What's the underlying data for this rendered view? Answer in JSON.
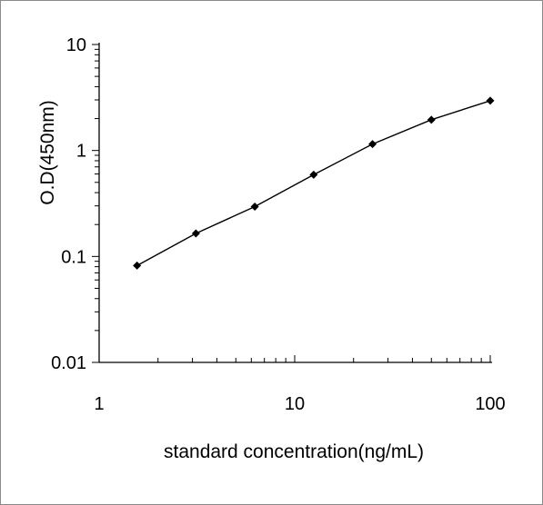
{
  "chart_data": {
    "type": "line",
    "xlabel": "standard concentration(ng/mL)",
    "ylabel": "O.D(450nm)",
    "xscale": "log",
    "yscale": "log",
    "xlim": [
      1,
      100
    ],
    "ylim": [
      0.01,
      10
    ],
    "x_tick_labels": [
      "1",
      "10",
      "100"
    ],
    "y_tick_labels": [
      "10",
      "1",
      "0.1",
      "0.01"
    ],
    "grid": false,
    "legend": "none",
    "marker": "diamond",
    "line_color": "#000000",
    "series": [
      {
        "x": [
          1.5625,
          3.125,
          6.25,
          12.5,
          25,
          50,
          100
        ],
        "y": [
          0.082,
          0.165,
          0.295,
          0.59,
          1.15,
          1.95,
          2.95
        ]
      }
    ]
  }
}
